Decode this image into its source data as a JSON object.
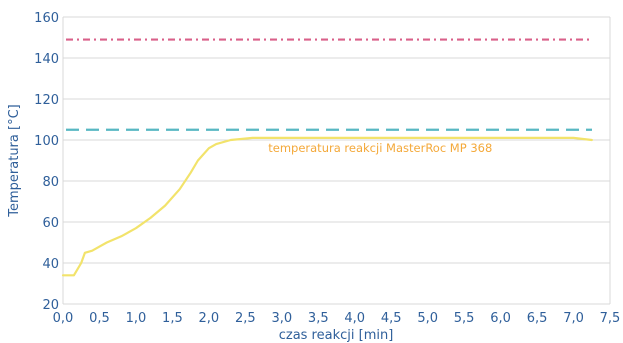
{
  "chart_data": {
    "type": "line",
    "title": "",
    "xlabel": "czas reakcji [min]",
    "ylabel": "Temperatura [°C]",
    "xlim": [
      0.0,
      7.5
    ],
    "ylim": [
      20,
      160
    ],
    "x_ticks": [
      "0,0",
      "0,5",
      "1,0",
      "1,5",
      "2,0",
      "2,5",
      "3,0",
      "3,5",
      "4,0",
      "4,5",
      "5,0",
      "5,5",
      "6,0",
      "6,5",
      "7,0",
      "7,5"
    ],
    "y_ticks": [
      "20",
      "40",
      "60",
      "80",
      "100",
      "120",
      "140",
      "160"
    ],
    "grid": true,
    "series": [
      {
        "name": "",
        "color": "#f2e36b",
        "x": [
          0.0,
          0.15,
          0.25,
          0.3,
          0.4,
          0.5,
          0.6,
          0.8,
          1.0,
          1.2,
          1.4,
          1.6,
          1.75,
          1.85,
          2.0,
          2.1,
          2.3,
          2.6,
          3.0,
          4.0,
          5.0,
          6.0,
          7.0,
          7.25
        ],
        "y": [
          34,
          34,
          40,
          45,
          46,
          48,
          50,
          53,
          57,
          62,
          68,
          76,
          84,
          90,
          96,
          98,
          100,
          101,
          101,
          101,
          101,
          101,
          101,
          100
        ]
      }
    ],
    "reference_lines": [
      {
        "name": "",
        "y": 149,
        "color": "#d9608a",
        "style": "dash-dot"
      },
      {
        "name": "",
        "y": 105,
        "color": "#57b7c2",
        "style": "dashed"
      }
    ],
    "annotation": {
      "text": "temperatura reakcji MasterRoc MP 368",
      "x": 4.35,
      "y": 96
    }
  }
}
